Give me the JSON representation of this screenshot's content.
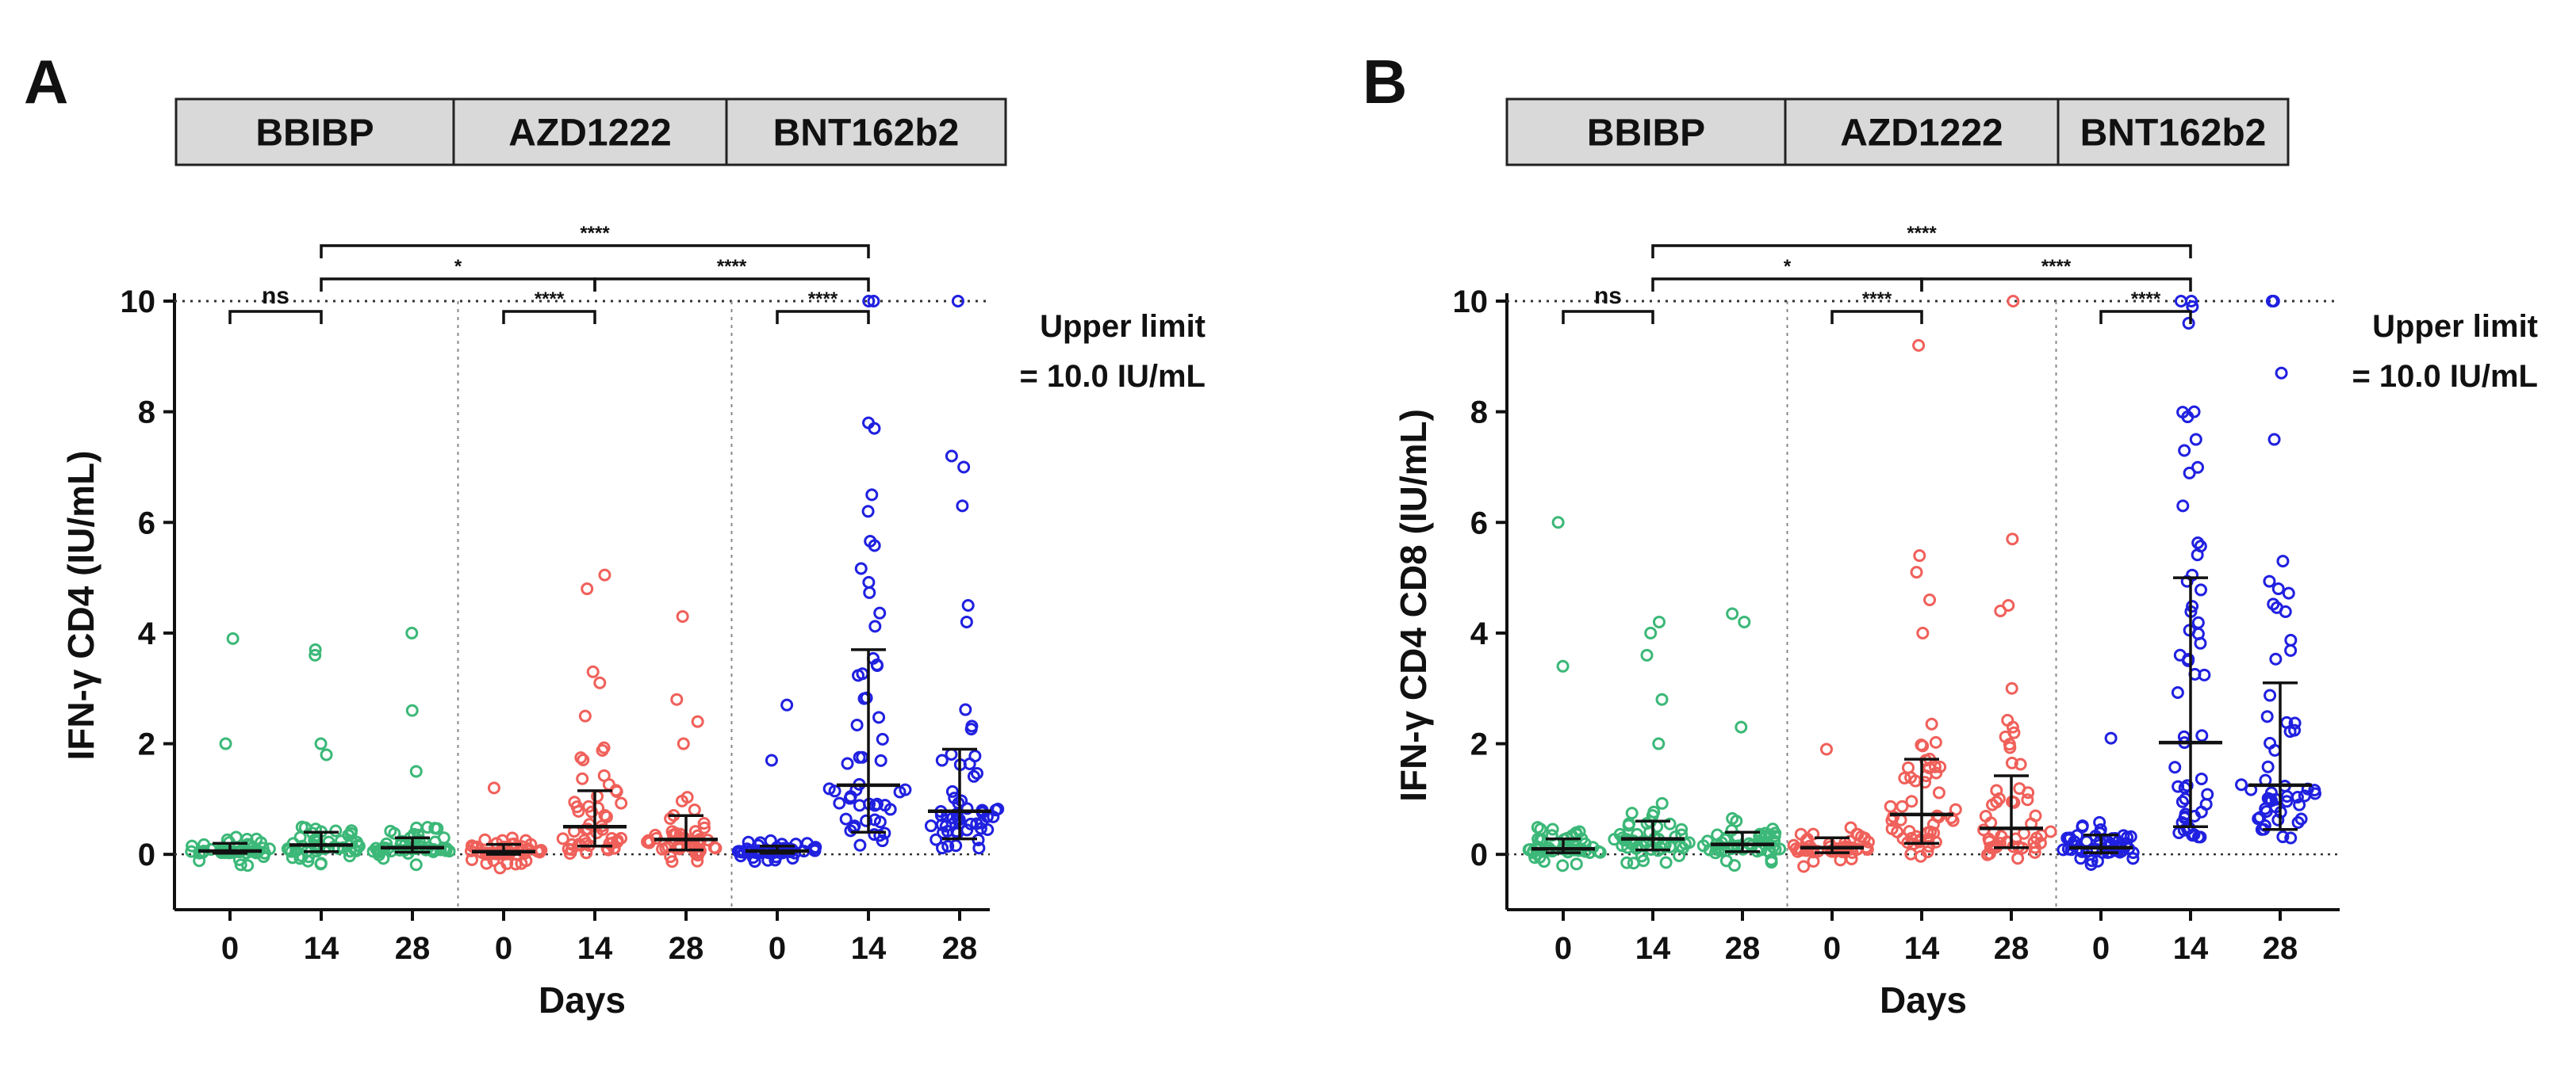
{
  "chart_data": [
    {
      "type": "scatter",
      "panel_label": "A",
      "ylabel": "IFN-γ CD4 (IU/mL)",
      "xlabel": "Days",
      "ylim": [
        -1,
        10
      ],
      "yticks": [
        "0",
        "2",
        "4",
        "6",
        "8",
        "10"
      ],
      "vaccine_groups": [
        "BBIBP",
        "AZD1222",
        "BNT162b2"
      ],
      "categories": [
        "0",
        "14",
        "28",
        "0",
        "14",
        "28",
        "0",
        "14",
        "28"
      ],
      "upper_limit_value": 10,
      "upper_limit_line1": "Upper limit",
      "upper_limit_line2": "= 10.0 IU/mL",
      "series_colors": [
        "#3cb878",
        "#f0605a",
        "#2020e0"
      ],
      "medians": [
        0.06,
        0.17,
        0.12,
        0.05,
        0.5,
        0.27,
        0.06,
        1.25,
        0.78
      ],
      "iqr_low": [
        0.02,
        0.05,
        0.04,
        0.0,
        0.15,
        0.08,
        0.02,
        0.4,
        0.28
      ],
      "iqr_high": [
        0.2,
        0.4,
        0.3,
        0.18,
        1.15,
        0.7,
        0.15,
        3.7,
        1.9
      ],
      "outliers": [
        [
          2.0,
          3.9
        ],
        [
          1.8,
          2.0,
          3.6,
          3.7
        ],
        [
          1.5,
          2.6,
          4.0
        ],
        [
          1.2
        ],
        [
          2.5,
          3.1,
          3.3,
          4.8,
          5.05
        ],
        [
          2.0,
          2.4,
          2.8,
          4.3
        ],
        [
          1.7,
          2.7
        ],
        [
          6.2,
          6.5,
          7.7,
          7.8,
          10,
          10
        ],
        [
          4.2,
          4.5,
          6.3,
          7.0,
          7.2,
          10
        ]
      ],
      "comparisons": [
        {
          "from": 0,
          "to": 1,
          "label": "ns",
          "level": 0
        },
        {
          "from": 3,
          "to": 4,
          "label": "****",
          "level": 0
        },
        {
          "from": 6,
          "to": 7,
          "label": "****",
          "level": 0
        },
        {
          "from": 1,
          "to": 4,
          "label": "*",
          "level": 1
        },
        {
          "from": 4,
          "to": 7,
          "label": "****",
          "level": 1
        },
        {
          "from": 1,
          "to": 7,
          "label": "****",
          "level": 2
        }
      ]
    },
    {
      "type": "scatter",
      "panel_label": "B",
      "ylabel": "IFN-γ CD4 CD8 (IU/mL)",
      "xlabel": "Days",
      "ylim": [
        -1,
        10
      ],
      "yticks": [
        "0",
        "2",
        "4",
        "6",
        "8",
        "10"
      ],
      "vaccine_groups": [
        "BBIBP",
        "AZD1222",
        "BNT162b2"
      ],
      "categories": [
        "0",
        "14",
        "28",
        "0",
        "14",
        "28",
        "0",
        "14",
        "28"
      ],
      "upper_limit_value": 10,
      "upper_limit_line1": "Upper limit",
      "upper_limit_line2": "= 10.0 IU/mL",
      "series_colors": [
        "#3cb878",
        "#f0605a",
        "#2020e0"
      ],
      "medians": [
        0.1,
        0.28,
        0.18,
        0.12,
        0.72,
        0.47,
        0.12,
        2.02,
        1.25
      ],
      "iqr_low": [
        0.03,
        0.08,
        0.05,
        0.03,
        0.2,
        0.12,
        0.03,
        0.5,
        0.45
      ],
      "iqr_high": [
        0.28,
        0.6,
        0.4,
        0.3,
        1.72,
        1.42,
        0.35,
        5.0,
        3.1
      ],
      "outliers": [
        [
          3.4,
          6.0
        ],
        [
          2.0,
          2.8,
          3.6,
          4.0,
          4.2
        ],
        [
          2.3,
          4.2,
          4.35
        ],
        [
          1.9
        ],
        [
          4.0,
          4.6,
          5.1,
          5.4,
          9.2
        ],
        [
          3.0,
          4.4,
          4.5,
          5.7,
          10
        ],
        [
          2.1
        ],
        [
          6.3,
          7.3,
          7.5,
          8.0,
          9.6,
          9.9,
          10,
          10
        ],
        [
          4.8,
          5.3,
          7.5,
          8.7,
          10,
          10
        ]
      ],
      "comparisons": [
        {
          "from": 0,
          "to": 1,
          "label": "ns",
          "level": 0
        },
        {
          "from": 3,
          "to": 4,
          "label": "****",
          "level": 0
        },
        {
          "from": 6,
          "to": 7,
          "label": "****",
          "level": 0
        },
        {
          "from": 1,
          "to": 4,
          "label": "*",
          "level": 1
        },
        {
          "from": 4,
          "to": 7,
          "label": "****",
          "level": 1
        },
        {
          "from": 1,
          "to": 7,
          "label": "****",
          "level": 2
        }
      ]
    }
  ]
}
